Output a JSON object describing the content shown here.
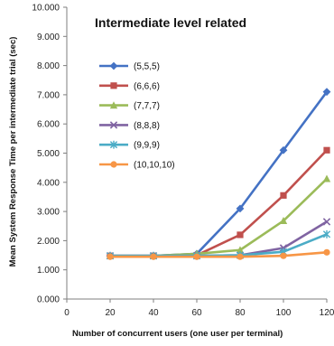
{
  "chart_data": {
    "type": "line",
    "title": "Intermediate level related",
    "xlabel": "Number of  concurrent users (one user per terminal)",
    "ylabel": "Mean System Response Time per intermediate trial (sec)",
    "x": [
      20,
      40,
      60,
      80,
      100,
      120
    ],
    "x_ticks": [
      "0",
      "20",
      "40",
      "60",
      "80",
      "100",
      "120"
    ],
    "y_ticks": [
      "0.000",
      "1.000",
      "2.000",
      "3.000",
      "4.000",
      "5.000",
      "6.000",
      "7.000",
      "8.000",
      "9.000",
      "10.000"
    ],
    "xlim": [
      0,
      120
    ],
    "ylim": [
      0,
      10
    ],
    "grid": false,
    "legend_position": "left-inside",
    "series": [
      {
        "name": "(5,5,5)",
        "color": "#4472C4",
        "marker": "diamond",
        "values": [
          1.48,
          1.48,
          1.55,
          3.1,
          5.1,
          7.1
        ]
      },
      {
        "name": "(6,6,6)",
        "color": "#C0504D",
        "marker": "square",
        "values": [
          1.48,
          1.48,
          1.5,
          2.2,
          3.55,
          5.1
        ]
      },
      {
        "name": "(7,7,7)",
        "color": "#9BBB59",
        "marker": "triangle",
        "values": [
          1.48,
          1.48,
          1.55,
          1.68,
          2.68,
          4.12
        ]
      },
      {
        "name": "(8,8,8)",
        "color": "#8064A2",
        "marker": "x",
        "values": [
          1.48,
          1.48,
          1.48,
          1.5,
          1.75,
          2.65
        ]
      },
      {
        "name": "(9,9,9)",
        "color": "#4BACC6",
        "marker": "star",
        "values": [
          1.48,
          1.48,
          1.48,
          1.5,
          1.62,
          2.22
        ]
      },
      {
        "name": "(10,10,10)",
        "color": "#F79646",
        "marker": "circle",
        "values": [
          1.45,
          1.45,
          1.45,
          1.45,
          1.48,
          1.6
        ]
      }
    ]
  }
}
